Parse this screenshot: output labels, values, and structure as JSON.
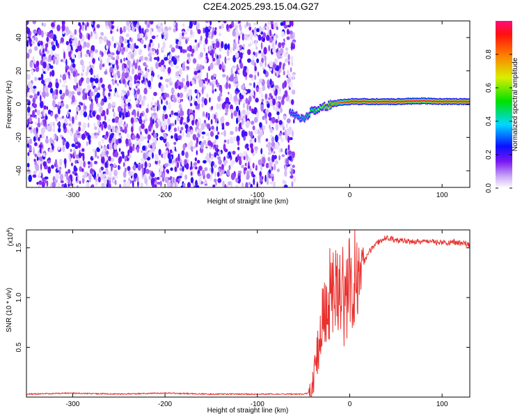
{
  "title": "C2E4.2025.293.15.04.G27",
  "chart_data": [
    {
      "type": "heatmap",
      "xlabel": "Height of straight line (km)",
      "ylabel": "Frequency (Hz)",
      "xlim": [
        -350,
        130
      ],
      "ylim": [
        -50,
        50
      ],
      "xticks": [
        -300,
        -200,
        -100,
        0,
        100
      ],
      "yticks": [
        -40,
        -20,
        0,
        20,
        40
      ],
      "colorbar": {
        "label": "Normalized spectral amplitude",
        "range": [
          0,
          1
        ],
        "ticks": [
          "0.0",
          "0.2",
          "0.4",
          "0.6",
          "0.8"
        ]
      },
      "noise_region_x": [
        -350,
        -60
      ],
      "signal_track": {
        "x": [
          -65,
          -58,
          -52,
          -48,
          -44,
          -40,
          -36,
          -30,
          -25,
          -20,
          -10,
          0,
          20,
          50,
          80,
          100,
          130
        ],
        "freq": [
          -5,
          -7,
          -9,
          -8,
          -6,
          -4,
          -3,
          -2,
          -1,
          0,
          1,
          1.5,
          1.5,
          1.5,
          2,
          1.5,
          1.5
        ],
        "amplitude": [
          0.3,
          0.35,
          0.4,
          0.45,
          0.5,
          0.55,
          0.6,
          0.65,
          0.7,
          0.75,
          0.85,
          0.9,
          0.95,
          0.97,
          0.95,
          0.95,
          0.95
        ]
      }
    },
    {
      "type": "line",
      "xlabel": "Height of straight line (km)",
      "ylabel": "SNR (10 * v/v)",
      "yscale_label": "(x10",
      "yscale_exp": "4",
      "xlim": [
        -350,
        130
      ],
      "ylim": [
        0,
        1.68
      ],
      "xticks": [
        -300,
        -200,
        -100,
        0,
        100
      ],
      "yticks": [
        "0.5",
        "1.0",
        "1.5"
      ],
      "color": "#e8322f",
      "series": [
        {
          "x": [
            -350,
            -300,
            -250,
            -200,
            -150,
            -100,
            -50,
            -42,
            -38,
            -34,
            -30,
            -26,
            -22,
            -18,
            -14,
            -10,
            -6,
            -2,
            2,
            6,
            10,
            15,
            20,
            25,
            30,
            35,
            40,
            50,
            60,
            70,
            80,
            90,
            100,
            110,
            120,
            130
          ],
          "y": [
            0.03,
            0.04,
            0.03,
            0.04,
            0.03,
            0.03,
            0.03,
            0.05,
            0.2,
            0.5,
            0.8,
            0.95,
            1.05,
            0.95,
            1.0,
            1.1,
            0.95,
            1.05,
            1.15,
            1.3,
            1.25,
            1.35,
            1.45,
            1.5,
            1.55,
            1.58,
            1.6,
            1.58,
            1.57,
            1.56,
            1.57,
            1.56,
            1.55,
            1.56,
            1.55,
            1.53
          ]
        }
      ]
    }
  ]
}
